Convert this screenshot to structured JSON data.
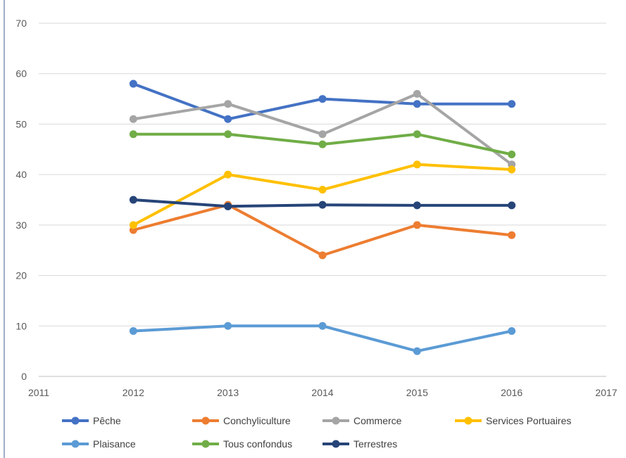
{
  "chart_data": {
    "type": "line",
    "title": "",
    "xlabel": "",
    "ylabel": "",
    "x": [
      2012,
      2013,
      2014,
      2015,
      2016
    ],
    "xlim": [
      2011,
      2017
    ],
    "ylim": [
      0,
      70
    ],
    "x_ticks": [
      "2011",
      "2012",
      "2013",
      "2014",
      "2015",
      "2016",
      "2017"
    ],
    "y_ticks": [
      "0",
      "10",
      "20",
      "30",
      "40",
      "50",
      "60",
      "70"
    ],
    "grid": "horizontal",
    "legend_position": "bottom",
    "series": [
      {
        "name": "Pêche",
        "color": "#4472C4",
        "values": [
          58,
          51,
          55,
          54,
          54
        ]
      },
      {
        "name": "Conchyliculture",
        "color": "#ED7D31",
        "values": [
          29,
          34,
          24,
          30,
          28
        ]
      },
      {
        "name": "Commerce",
        "color": "#A5A5A5",
        "values": [
          51,
          54,
          48,
          56,
          42
        ]
      },
      {
        "name": "Services Portuaires",
        "color": "#FFC000",
        "values": [
          30,
          40,
          37,
          42,
          41
        ]
      },
      {
        "name": "Plaisance",
        "color": "#5B9BD5",
        "values": [
          9,
          10,
          10,
          5,
          9
        ]
      },
      {
        "name": "Tous confondus",
        "color": "#70AD47",
        "values": [
          48,
          48,
          46,
          48,
          44
        ]
      },
      {
        "name": "Terrestres",
        "color": "#264478",
        "values": [
          35,
          33.7,
          34,
          33.9,
          33.9
        ]
      }
    ]
  }
}
